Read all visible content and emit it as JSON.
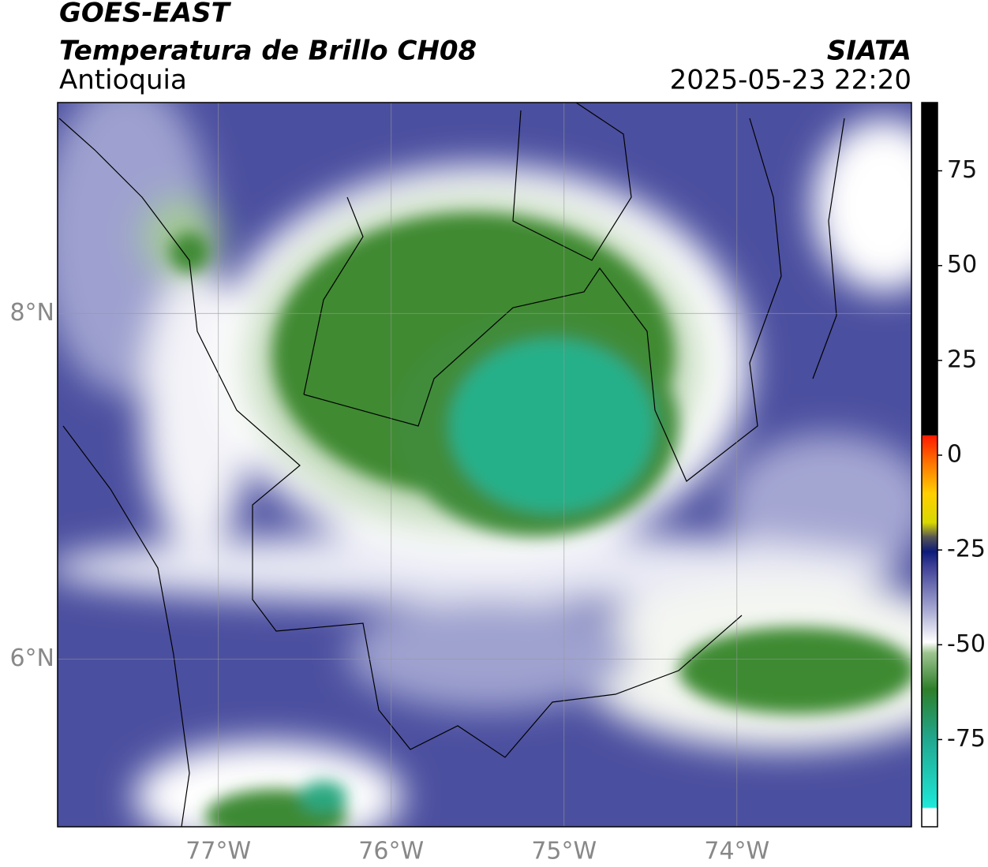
{
  "header": {
    "title": "GOES-EAST",
    "subtitle": "Temperatura de Brillo CH08",
    "region": "Antioquia",
    "source": "SIATA",
    "datetime": "2025-05-23 22:20"
  },
  "map": {
    "xlim": [
      -77.93,
      -72.99
    ],
    "ylim": [
      5.03,
      9.22
    ],
    "xticks": [
      {
        "value": -77,
        "label": "77°W"
      },
      {
        "value": -76,
        "label": "76°W"
      },
      {
        "value": -75,
        "label": "75°W"
      },
      {
        "value": -74,
        "label": "74°W"
      }
    ],
    "yticks": [
      {
        "value": 6,
        "label": "6°N"
      },
      {
        "value": 8,
        "label": "8°N"
      }
    ],
    "grid": true
  },
  "colorbar": {
    "lim": [
      -98,
      93
    ],
    "ticks": [
      75,
      50,
      25,
      0,
      -25,
      -50,
      -75
    ]
  }
}
